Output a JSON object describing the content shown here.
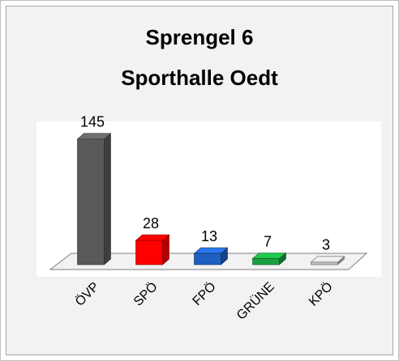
{
  "chart_data": {
    "type": "bar3d",
    "title": "Sprengel 6",
    "subtitle": "Sporthalle Oedt",
    "categories": [
      "ÖVP",
      "SPÖ",
      "FPÖ",
      "GRÜNE",
      "KPÖ"
    ],
    "values": [
      145,
      28,
      13,
      7,
      3
    ],
    "colors": [
      "#595959",
      "#ff0000",
      "#1f5fbf",
      "#1aa040",
      "#bfbfbf"
    ]
  }
}
